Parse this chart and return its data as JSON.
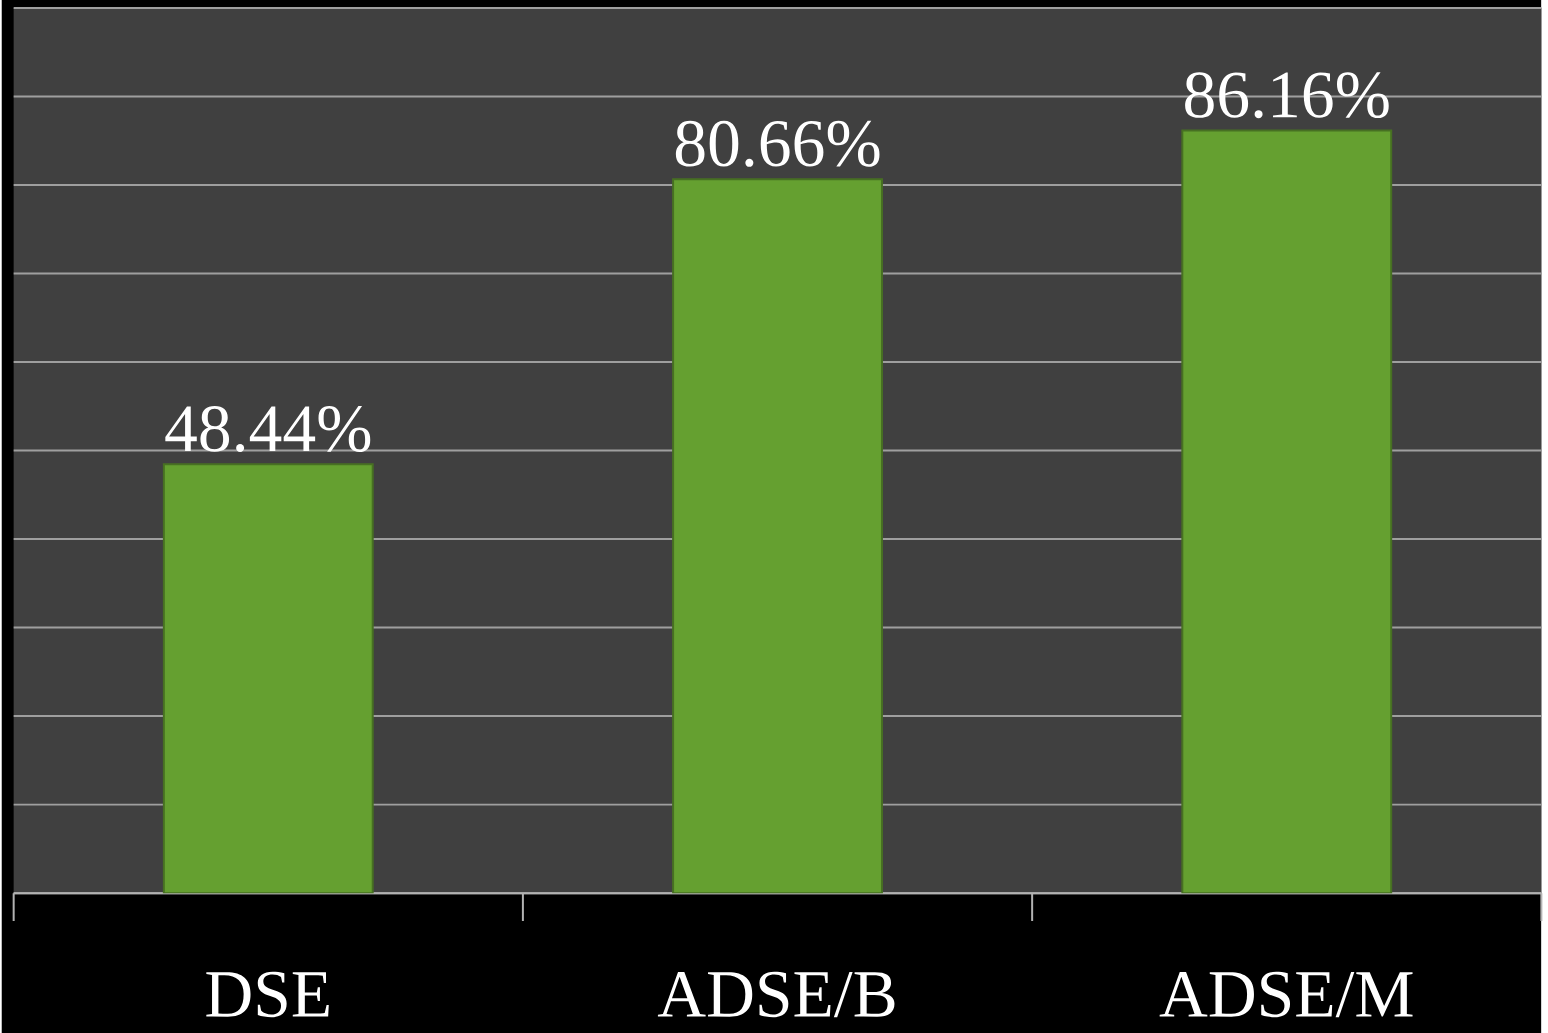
{
  "chart_data": {
    "type": "bar",
    "categories": [
      "DSE",
      "ADSE/B",
      "ADSE/M"
    ],
    "values": [
      48.44,
      80.66,
      86.16
    ],
    "value_labels": [
      "48.44%",
      "80.66%",
      "86.16%"
    ],
    "color": "#65a030",
    "ylim": [
      0,
      100
    ],
    "yticks": [
      {
        "value": 0,
        "label": null
      },
      {
        "value": 10,
        "label": null
      },
      {
        "value": 20,
        "label": null
      },
      {
        "value": 30,
        "label": null
      },
      {
        "value": 40,
        "label": null
      },
      {
        "value": 50,
        "label": null
      },
      {
        "value": 60,
        "label": null
      },
      {
        "value": 70,
        "label": null
      },
      {
        "value": 80,
        "label": null
      },
      {
        "value": 90,
        "label": null
      },
      {
        "value": 100,
        "label": null
      }
    ],
    "tick_labels": "x",
    "grid": "y"
  }
}
